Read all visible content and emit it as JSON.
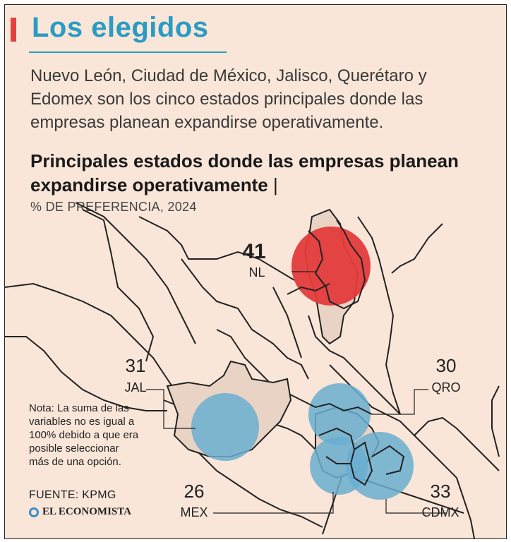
{
  "header": {
    "title": "Los elegidos",
    "subtitle": "Nuevo León, Ciudad de México, Jalisco, Querétaro y Edomex son los cinco estados principales donde las empresas planean expandirse operativamente."
  },
  "chart": {
    "title": "Principales estados donde las empresas planean expandirse operativamente",
    "title_separator": "|",
    "subtitle": "% DE PREFERENCIA, 2024"
  },
  "chart_data": {
    "type": "map",
    "title": "Principales estados donde las empresas planean expandirse operativamente",
    "subtitle": "% DE PREFERENCIA, 2024",
    "categories": [
      "NL",
      "JAL",
      "QRO",
      "MEX",
      "CDMX"
    ],
    "values": [
      41,
      31,
      30,
      26,
      33
    ],
    "unit": "% de preferencia",
    "highlight": "NL"
  },
  "footer": {
    "note": "Nota: La suma de las variables no es igual a 100% debido a que era posible seleccionar más de una opción.",
    "source": "FUENTE: KPMG",
    "brand": "EL ECONOMISTA"
  },
  "colors": {
    "background": "#f9e6d8",
    "title": "#2a9cc4",
    "accent": "#e2433f",
    "highlight_bubble": "#e33b3b",
    "bubble": "#6aaed0",
    "state_fill": "#e8d3c4",
    "border": "#1a1a1a"
  }
}
